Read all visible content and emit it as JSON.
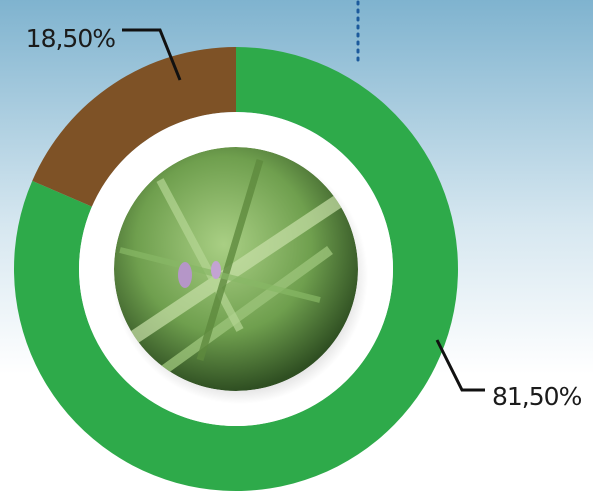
{
  "chart_data": {
    "type": "donut",
    "values": [
      81.5,
      18.5
    ],
    "value_labels": [
      "81,50%",
      "18,50%"
    ],
    "colors": [
      "#2eaa4a",
      "#7e5226"
    ]
  }
}
